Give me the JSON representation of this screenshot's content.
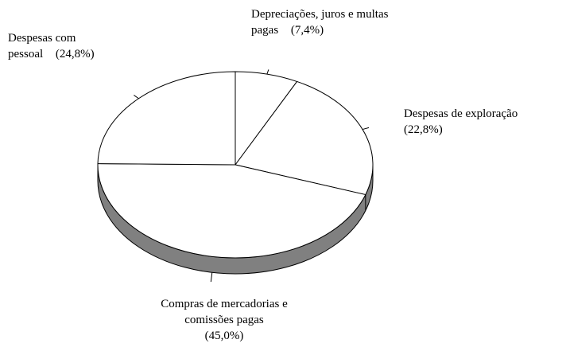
{
  "chart_data": {
    "type": "pie",
    "categories": [
      "Depreciações, juros e multas pagas",
      "Despesas de exploração",
      "Compras de mercadorias e comissões pagas",
      "Despesas com pessoal"
    ],
    "values": [
      7.4,
      22.8,
      45.0,
      24.8
    ],
    "value_labels": [
      "(7,4%)",
      "(22,8%)",
      "(45,0%)",
      "(24,8%)"
    ],
    "color": "#ffffff"
  }
}
